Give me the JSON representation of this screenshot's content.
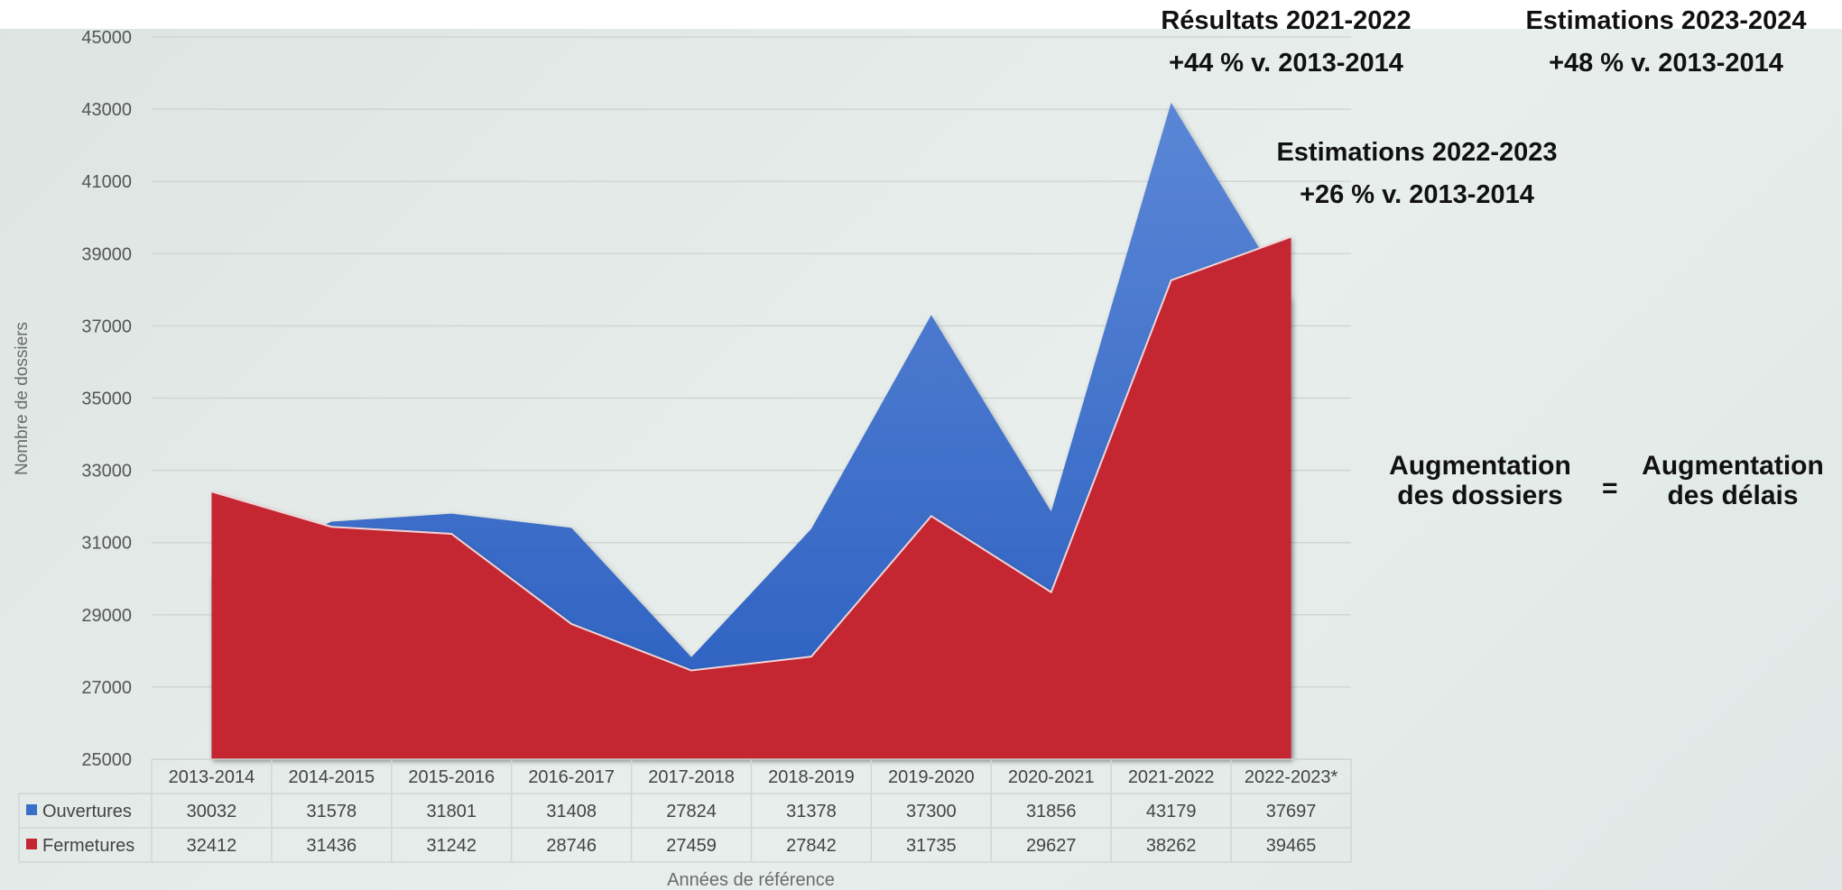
{
  "chart_data": {
    "type": "area",
    "ylabel": "Nombre de dossiers",
    "xlabel": "Années de référence",
    "ylim": [
      25000,
      45000
    ],
    "yticks": [
      25000,
      27000,
      29000,
      31000,
      33000,
      35000,
      37000,
      39000,
      41000,
      43000,
      45000
    ],
    "categories": [
      "2013-2014",
      "2014-2015",
      "2015-2016",
      "2016-2017",
      "2017-2018",
      "2018-2019",
      "2019-2020",
      "2020-2021",
      "2021-2022",
      "2022-2023*"
    ],
    "series": [
      {
        "name": "Ouvertures",
        "color": "#3a6fc9",
        "values": [
          30032,
          31578,
          31801,
          31408,
          27824,
          31378,
          37300,
          31856,
          43179,
          37697
        ]
      },
      {
        "name": "Fermetures",
        "color": "#c42733",
        "values": [
          32412,
          31436,
          31242,
          28746,
          27459,
          27842,
          31735,
          29627,
          38262,
          39465
        ]
      }
    ],
    "grid": true,
    "legend": "data-table"
  },
  "annotations": {
    "results_2122": {
      "line1": "Résultats 2021-2022",
      "line2": "+44 % v. 2013-2014"
    },
    "estim_2324": {
      "line1": "Estimations 2023-2024",
      "line2": "+48 % v. 2013-2014"
    },
    "estim_2223": {
      "line1": "Estimations 2022-2023",
      "line2": "+26 % v. 2013-2014"
    },
    "equation": {
      "left_line1": "Augmentation",
      "left_line2": "des dossiers",
      "sign": "=",
      "right_line1": "Augmentation",
      "right_line2": "des délais"
    }
  }
}
